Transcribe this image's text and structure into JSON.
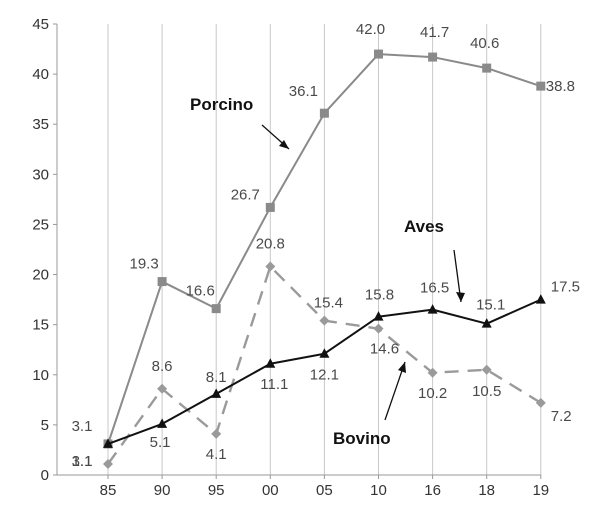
{
  "chart_data": {
    "type": "line",
    "title": "",
    "xlabel": "",
    "ylabel": "",
    "categories": [
      "85",
      "90",
      "95",
      "00",
      "05",
      "10",
      "16",
      "18",
      "19"
    ],
    "ylim": [
      0,
      45
    ],
    "yticks": [
      "0",
      "5",
      "10",
      "15",
      "20",
      "25",
      "30",
      "35",
      "40",
      "45"
    ],
    "grid": "vertical",
    "series": [
      {
        "name": "Porcino",
        "values": [
          3.1,
          19.3,
          16.6,
          26.7,
          36.1,
          42.0,
          41.7,
          40.6,
          38.8
        ],
        "labels": [
          "3.1",
          "19.3",
          "16.6",
          "26.7",
          "36.1",
          "42.0",
          "41.7",
          "40.6",
          "38.8"
        ],
        "color": "#8a8a8a",
        "line_style": "solid",
        "marker": "square"
      },
      {
        "name": "Aves",
        "values": [
          3.1,
          5.1,
          8.1,
          11.1,
          12.1,
          15.8,
          16.5,
          15.1,
          17.5
        ],
        "labels": [
          "3.1",
          "5.1",
          "8.1",
          "11.1",
          "12.1",
          "15.8",
          "16.5",
          "15.1",
          "17.5"
        ],
        "color": "#111111",
        "line_style": "solid",
        "marker": "triangle"
      },
      {
        "name": "Bovino",
        "values": [
          1.1,
          8.6,
          4.1,
          20.8,
          15.4,
          14.6,
          10.2,
          10.5,
          7.2
        ],
        "labels": [
          "1.1",
          "8.6",
          "4.1",
          "20.8",
          "15.4",
          "14.6",
          "10.2",
          "10.5",
          "7.2"
        ],
        "color": "#9a9a9a",
        "line_style": "dashed",
        "marker": "diamond"
      }
    ]
  }
}
